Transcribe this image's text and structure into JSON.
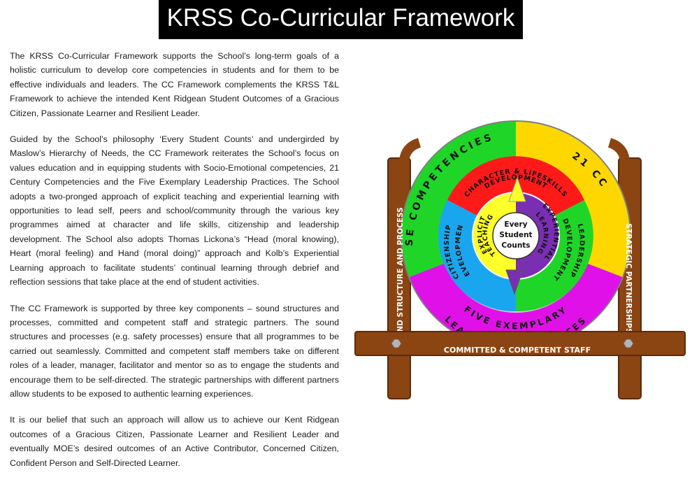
{
  "page": {
    "title": "KRSS Co-Curricular Framework",
    "paragraphs": [
      "The KRSS Co-Curricular Framework supports the School’s long-term goals of a holistic curriculum to develop core competencies in students and for them to be effective individuals and leaders. The CC Framework complements the KRSS T&L Framework to achieve the intended Kent Ridgean Student Outcomes of a Gracious Citizen, Passionate Learner and Resilient Leader.",
      "Guided by the School’s philosophy ‘Every Student Counts’ and undergirded by Maslow’s Hierarchy of Needs, the CC Framework reiterates the School’s focus on values education and in equipping students with Socio-Emotional competencies, 21 Century Competencies and the Five Exemplary Leadership Practices. The School adopts a two-pronged approach of explicit teaching and experiential learning with opportunities to lead self, peers and school/community through the various key programmes aimed at character and life skills, citizenship and leadership development. The School also adopts Thomas Lickona’s “Head (moral knowing), Heart (moral feeling) and Hand (moral doing)” approach and Kolb’s Experiential Learning approach to facilitate students’ continual learning through debrief and reflection sessions that take place at the end of student activities.",
      "The CC Framework is supported by three key components – sound structures and processes, committed and competent staff and strategic partners. The sound structures and processes (e.g. safety processes) ensure that all programmes to be carried out seamlessly. Committed and competent staff members take on different roles of a leader, manager, facilitator and mentor so as to engage the students and encourage them to be self-directed. The strategic partnerships with different partners allow students to be exposed to authentic learning experiences.",
      "It is our belief that such an approach will allow us to achieve our Kent Ridgean outcomes of a Gracious Citizen, Passionate Learner and Resilient Leader and eventually MOE’s desired outcomes of an Active Contributor, Concerned Citizen, Confident Person and Self-Directed Learner."
    ]
  },
  "diagram": {
    "frame": {
      "left_post": "SOUND STRUCTURE AND PROCESS",
      "right_post": "STRATEGIC PARTNERSHIPS",
      "base_beam": "COMMITTED & COMPETENT STAFF",
      "wood_color": "#8b4513"
    },
    "outer_ring": {
      "se_competencies": "SE COMPETENCIES",
      "twenty_first_cc": "21 CC",
      "leadership_top": "FIVE EXEMPLARY",
      "leadership_bottom": "LEADERSHIP PRACTICES"
    },
    "middle_ring": {
      "character": "CHARACTER & LIFESKILLS",
      "character_2": "DEVELOPMENT",
      "citizenship": "CITIZENSHIP",
      "citizenship_2": "DEVELOPMENT",
      "leadership": "LEADERSHIP",
      "leadership_2": "DEVELOPMENT"
    },
    "inner_ring": {
      "explicit": "EXPLICIT",
      "teaching": "TEACHING",
      "experiential": "EXPERIENTIAL",
      "learning": "LEARNING"
    },
    "center": {
      "line1": "Every",
      "line2": "Student",
      "line3": "Counts"
    },
    "colors": {
      "green": "#1fd628",
      "yellow": "#ffd700",
      "magenta": "#e010e8",
      "red": "#ff1a1a",
      "blue": "#1aa6ee",
      "inner_yellow": "#ffff2a",
      "purple": "#7a2fb2"
    }
  }
}
